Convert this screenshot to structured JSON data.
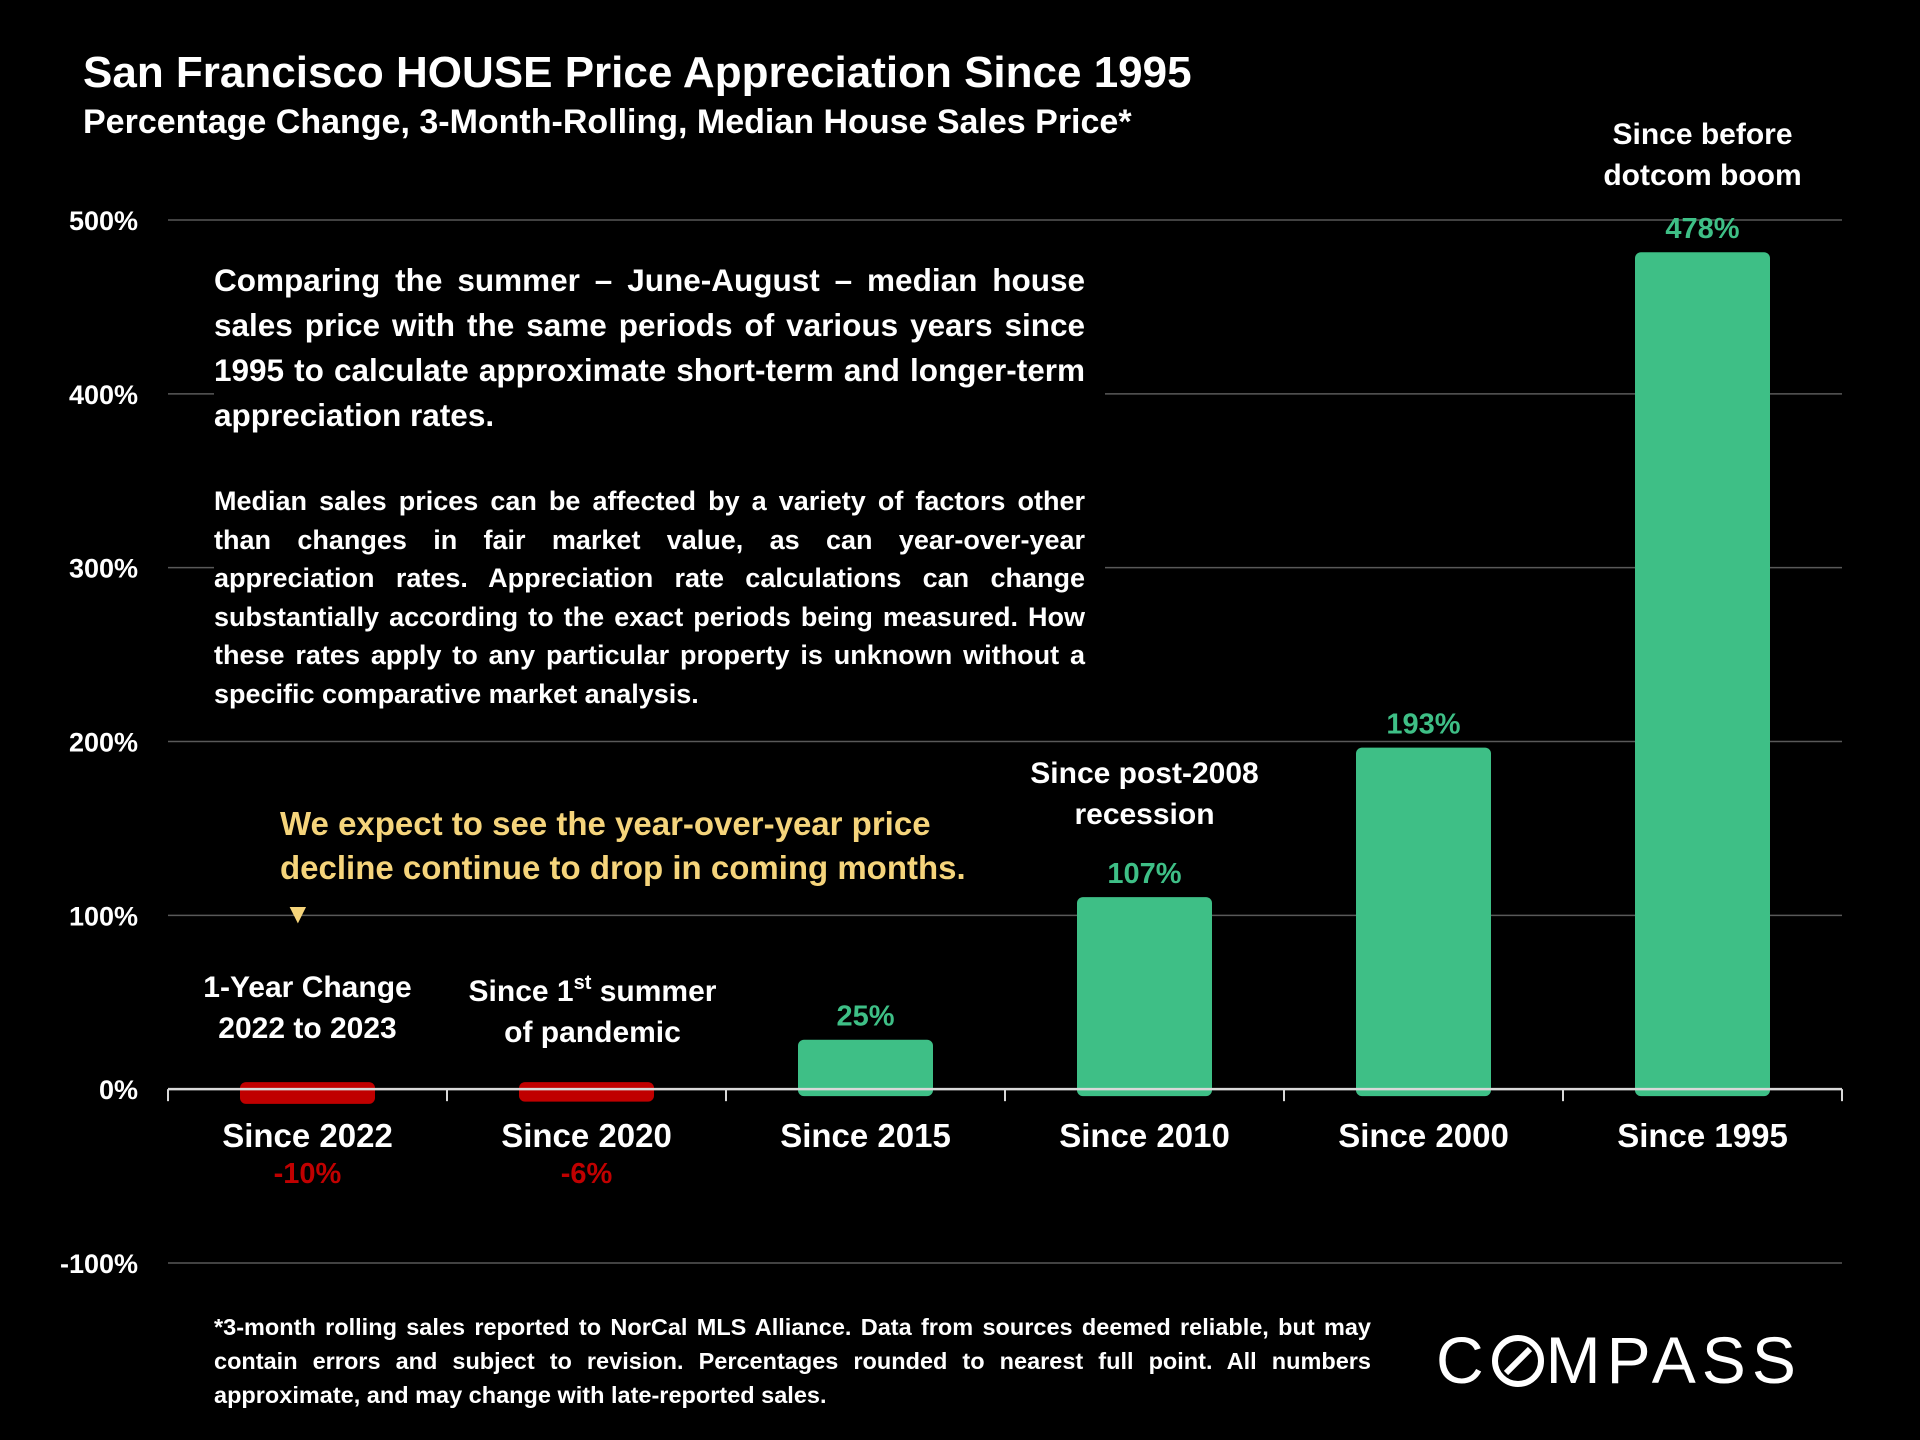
{
  "header": {
    "title": "San Francisco HOUSE Price Appreciation Since 1995",
    "subtitle": "Percentage Change, 3-Month-Rolling, Median House Sales Price*"
  },
  "colors": {
    "positive": "#3ebf86",
    "negative": "#c00000",
    "highlight": "#f5d47b",
    "grid": "#595959"
  },
  "text": {
    "paragraph1": "Comparing the summer – June-August – median house sales price with the same periods of various years since 1995 to calculate approximate short-term and longer-term appreciation rates.",
    "paragraph2": "Median sales prices can be affected by a variety of factors other than changes in fair market value, as can year-over-year appreciation rates. Appreciation rate calculations can change substantially according to the exact periods being measured. How these rates apply to any particular property is unknown without a specific comparative market analysis.",
    "expectation": "We expect to see the year-over-year price decline continue to drop in coming months.",
    "arrow": "▼",
    "footnote": "*3-month rolling sales reported to NorCal MLS Alliance. Data from sources deemed reliable, but may contain errors and subject to revision. Percentages rounded to nearest full point. All numbers approximate, and may change with late-reported sales.",
    "logo_prefix": "C",
    "logo_suffix": "MPASS"
  },
  "chart_data": {
    "type": "bar",
    "title": "San Francisco HOUSE Price Appreciation Since 1995",
    "ylim": [
      -100,
      500
    ],
    "yticks": [
      -100,
      0,
      100,
      200,
      300,
      400,
      500
    ],
    "ytick_labels": [
      "-100%",
      "0%",
      "100%",
      "200%",
      "300%",
      "400%",
      "500%"
    ],
    "categories": [
      "Since 2022",
      "Since 2020",
      "Since 2015",
      "Since 2010",
      "Since 2000",
      "Since 1995"
    ],
    "values": [
      -10,
      -6,
      25,
      107,
      193,
      478
    ],
    "value_labels": [
      "-10%",
      "-6%",
      "25%",
      "107%",
      "193%",
      "478%"
    ],
    "annotations": [
      {
        "category": "Since 2022",
        "lines": [
          "1-Year Change",
          "2022 to 2023"
        ]
      },
      {
        "category": "Since 2020",
        "lines": [
          "Since 1",
          "st",
          " summer",
          "of pandemic"
        ]
      },
      {
        "category": "Since 2010",
        "lines": [
          "Since post-2008",
          "recession"
        ]
      },
      {
        "category": "Since 1995",
        "lines": [
          "Since before",
          "dotcom boom"
        ]
      }
    ]
  }
}
